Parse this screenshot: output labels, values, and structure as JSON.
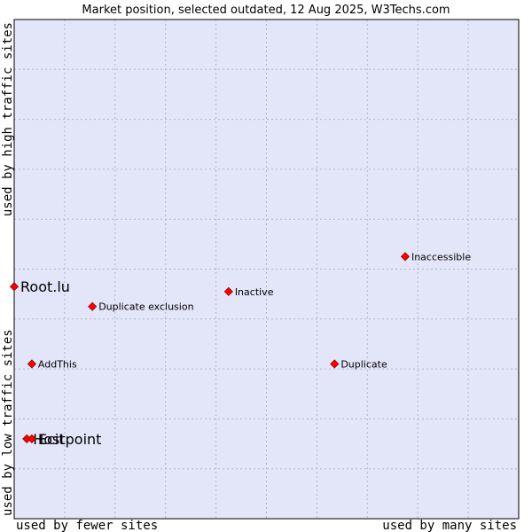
{
  "chart_data": {
    "type": "scatter",
    "title": "Market position, selected outdated, 12 Aug 2025, W3Techs.com",
    "xlabel_left": "used by fewer sites",
    "xlabel_right": "used by many sites",
    "ylabel_bottom": "used by low traffic sites",
    "ylabel_top": "used by high traffic sites",
    "xlim": [
      0,
      100
    ],
    "ylim": [
      0,
      100
    ],
    "grid": true,
    "points": [
      {
        "label": "Inaccessible",
        "x": 77.5,
        "y": 52.5,
        "size": "small"
      },
      {
        "label": "Root.lu",
        "x": 0.0,
        "y": 46.5,
        "size": "large"
      },
      {
        "label": "Inactive",
        "x": 42.5,
        "y": 45.5,
        "size": "small"
      },
      {
        "label": "Duplicate exclusion",
        "x": 15.5,
        "y": 42.5,
        "size": "small"
      },
      {
        "label": "AddThis",
        "x": 3.5,
        "y": 31.0,
        "size": "small"
      },
      {
        "label": "Duplicate",
        "x": 63.5,
        "y": 31.0,
        "size": "small"
      },
      {
        "label": "Hostpoint",
        "x": 2.5,
        "y": 16.0,
        "size": "large"
      },
      {
        "label": "Ecit",
        "x": 3.5,
        "y": 16.0,
        "size": "large"
      }
    ]
  },
  "colors": {
    "plot_bg": "#e3e5f8",
    "grid": "#b4b6c8",
    "marker_fill": "#ff0000",
    "marker_stroke": "#990000"
  }
}
